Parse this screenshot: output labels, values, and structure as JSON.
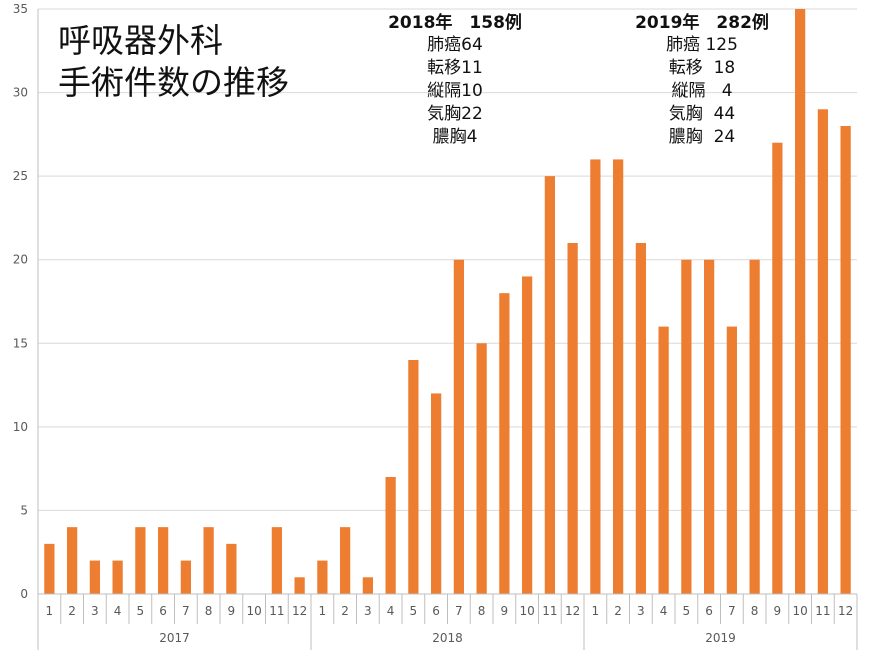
{
  "title": [
    "呼吸器外科",
    "手術件数の推移"
  ],
  "notes": [
    {
      "head": "2018年　158例",
      "lines": [
        "肺癌64",
        "転移11",
        "縦隔10",
        "気胸22",
        "膿胸4"
      ]
    },
    {
      "head": "2019年　282例",
      "lines": [
        "肺癌 125",
        "転移  18",
        "縦隔   4",
        "気胸  44",
        "膿胸  24"
      ]
    }
  ],
  "colors": {
    "bar": "#ED7D31",
    "grid": "#D9D9D9",
    "axis": "#BFBFBF",
    "text": "#595959"
  },
  "chart_data": {
    "type": "bar",
    "title": "呼吸器外科 手術件数の推移",
    "xlabel": "",
    "ylabel": "",
    "ylim": [
      0,
      35
    ],
    "yticks": [
      0,
      5,
      10,
      15,
      20,
      25,
      30,
      35
    ],
    "grid": true,
    "legend": "none",
    "groups": [
      {
        "label": "2017",
        "categories": [
          "1",
          "2",
          "3",
          "4",
          "5",
          "6",
          "7",
          "8",
          "9",
          "10",
          "11",
          "12"
        ],
        "values": [
          3,
          4,
          2,
          2,
          4,
          4,
          2,
          4,
          3,
          0,
          4,
          1
        ]
      },
      {
        "label": "2018",
        "categories": [
          "1",
          "2",
          "3",
          "4",
          "5",
          "6",
          "7",
          "8",
          "9",
          "10",
          "11",
          "12"
        ],
        "values": [
          2,
          4,
          1,
          7,
          14,
          12,
          20,
          15,
          18,
          19,
          25,
          21
        ]
      },
      {
        "label": "2019",
        "categories": [
          "1",
          "2",
          "3",
          "4",
          "5",
          "6",
          "7",
          "8",
          "9",
          "10",
          "11",
          "12"
        ],
        "values": [
          26,
          26,
          21,
          16,
          20,
          20,
          16,
          20,
          27,
          35,
          29,
          28
        ]
      }
    ]
  }
}
